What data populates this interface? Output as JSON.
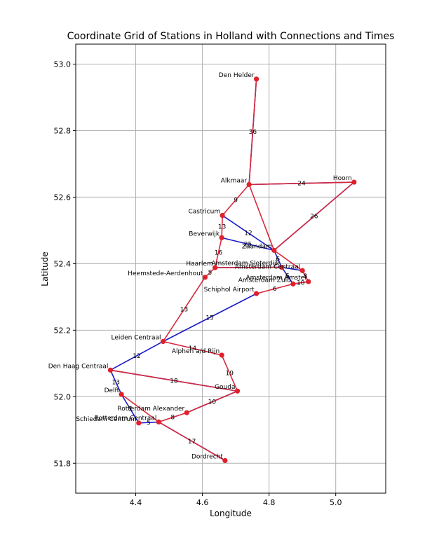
{
  "chart_data": {
    "type": "scatter",
    "title": "Coordinate Grid of Stations in Holland with Connections and Times",
    "xlabel": "Longitude",
    "ylabel": "Latitude",
    "xlim": [
      4.22,
      5.15
    ],
    "ylim": [
      51.71,
      53.06
    ],
    "xticks": [
      "4.4",
      "4.6",
      "4.8",
      "5.0"
    ],
    "yticks": [
      "51.8",
      "52.0",
      "52.2",
      "52.4",
      "52.6",
      "52.8",
      "53.0"
    ],
    "grid": true,
    "colors": {
      "marker": "#e0202a",
      "edge_blue": "#1a1ac8",
      "edge_red": "#d8283c",
      "grid": "#b0b0b0"
    },
    "stations": [
      {
        "name": "Den Helder",
        "x": 4.762,
        "y": 52.955
      },
      {
        "name": "Alkmaar",
        "x": 4.74,
        "y": 52.638
      },
      {
        "name": "Hoorn",
        "x": 5.055,
        "y": 52.645
      },
      {
        "name": "Castricum",
        "x": 4.66,
        "y": 52.545
      },
      {
        "name": "Beverwijk",
        "x": 4.658,
        "y": 52.478
      },
      {
        "name": "Zaandam",
        "x": 4.815,
        "y": 52.44
      },
      {
        "name": "Haarlem",
        "x": 4.638,
        "y": 52.388
      },
      {
        "name": "Amsterdam Sloterdijk",
        "x": 4.838,
        "y": 52.389
      },
      {
        "name": "Amsterdam Centraal",
        "x": 4.9,
        "y": 52.379
      },
      {
        "name": "Heemstede-Aerdenhout",
        "x": 4.608,
        "y": 52.359
      },
      {
        "name": "Amsterdam Amstel",
        "x": 4.918,
        "y": 52.346
      },
      {
        "name": "Amsterdam Zuid",
        "x": 4.872,
        "y": 52.339
      },
      {
        "name": "Schiphol Airport",
        "x": 4.762,
        "y": 52.31
      },
      {
        "name": "Leiden Centraal",
        "x": 4.482,
        "y": 52.166
      },
      {
        "name": "Alphen a/d Rijn",
        "x": 4.658,
        "y": 52.125
      },
      {
        "name": "Den Haag Centraal",
        "x": 4.324,
        "y": 52.08
      },
      {
        "name": "Gouda",
        "x": 4.705,
        "y": 52.017
      },
      {
        "name": "Delft",
        "x": 4.357,
        "y": 52.007
      },
      {
        "name": "Rotterdam Alexander",
        "x": 4.553,
        "y": 51.952
      },
      {
        "name": "Rotterdam Centraal",
        "x": 4.469,
        "y": 51.924
      },
      {
        "name": "Schiedam Centrum",
        "x": 4.409,
        "y": 51.921
      },
      {
        "name": "Dordrecht",
        "x": 4.668,
        "y": 51.808
      }
    ],
    "connections": [
      {
        "from": "Den Helder",
        "to": "Alkmaar",
        "time": "36",
        "color": "blue"
      },
      {
        "from": "Den Helder",
        "to": "Alkmaar",
        "time": "36",
        "color": "red"
      },
      {
        "from": "Alkmaar",
        "to": "Hoorn",
        "time": "24",
        "color": "blue"
      },
      {
        "from": "Alkmaar",
        "to": "Hoorn",
        "time": "24",
        "color": "red"
      },
      {
        "from": "Alkmaar",
        "to": "Castricum",
        "time": "9",
        "color": "red"
      },
      {
        "from": "Alkmaar",
        "to": "Zaandam",
        "time": "",
        "color": "red"
      },
      {
        "from": "Hoorn",
        "to": "Zaandam",
        "time": "26",
        "color": "blue"
      },
      {
        "from": "Hoorn",
        "to": "Zaandam",
        "time": "26",
        "color": "red"
      },
      {
        "from": "Castricum",
        "to": "Beverwijk",
        "time": "13",
        "color": "red"
      },
      {
        "from": "Castricum",
        "to": "Zaandam",
        "time": "12",
        "color": "blue"
      },
      {
        "from": "Beverwijk",
        "to": "Zaandam",
        "time": "25",
        "color": "blue"
      },
      {
        "from": "Beverwijk",
        "to": "Haarlem",
        "time": "16",
        "color": "red"
      },
      {
        "from": "Zaandam",
        "to": "Amsterdam Sloterdijk",
        "time": "6",
        "color": "blue"
      },
      {
        "from": "Zaandam",
        "to": "Amsterdam Centraal",
        "time": "",
        "color": "red"
      },
      {
        "from": "Haarlem",
        "to": "Amsterdam Sloterdijk",
        "time": "",
        "color": "blue"
      },
      {
        "from": "Haarlem",
        "to": "Amsterdam Sloterdijk",
        "time": "",
        "color": "red"
      },
      {
        "from": "Haarlem",
        "to": "Heemstede-Aerdenhout",
        "time": "5",
        "color": "red"
      },
      {
        "from": "Amsterdam Sloterdijk",
        "to": "Amsterdam Centraal",
        "time": "",
        "color": "blue"
      },
      {
        "from": "Amsterdam Sloterdijk",
        "to": "Amsterdam Zuid",
        "time": "6",
        "color": "blue"
      },
      {
        "from": "Amsterdam Centraal",
        "to": "Amsterdam Amstel",
        "time": "8",
        "color": "blue"
      },
      {
        "from": "Amsterdam Centraal",
        "to": "Amsterdam Amstel",
        "time": "8",
        "color": "red"
      },
      {
        "from": "Amsterdam Amstel",
        "to": "Amsterdam Zuid",
        "time": "10",
        "color": "blue"
      },
      {
        "from": "Amsterdam Amstel",
        "to": "Amsterdam Zuid",
        "time": "10",
        "color": "red"
      },
      {
        "from": "Amsterdam Zuid",
        "to": "Schiphol Airport",
        "time": "6",
        "color": "red"
      },
      {
        "from": "Heemstede-Aerdenhout",
        "to": "Leiden Centraal",
        "time": "13",
        "color": "red"
      },
      {
        "from": "Schiphol Airport",
        "to": "Leiden Centraal",
        "time": "15",
        "color": "blue"
      },
      {
        "from": "Leiden Centraal",
        "to": "Alphen a/d Rijn",
        "time": "14",
        "color": "red"
      },
      {
        "from": "Leiden Centraal",
        "to": "Den Haag Centraal",
        "time": "12",
        "color": "blue"
      },
      {
        "from": "Alphen a/d Rijn",
        "to": "Gouda",
        "time": "19",
        "color": "red"
      },
      {
        "from": "Den Haag Centraal",
        "to": "Gouda",
        "time": "18",
        "color": "blue"
      },
      {
        "from": "Den Haag Centraal",
        "to": "Gouda",
        "time": "18",
        "color": "red"
      },
      {
        "from": "Den Haag Centraal",
        "to": "Delft",
        "time": "13",
        "color": "blue"
      },
      {
        "from": "Gouda",
        "to": "Rotterdam Alexander",
        "time": "10",
        "color": "blue"
      },
      {
        "from": "Gouda",
        "to": "Rotterdam Alexander",
        "time": "10",
        "color": "red"
      },
      {
        "from": "Delft",
        "to": "Schiedam Centrum",
        "time": "7",
        "color": "blue"
      },
      {
        "from": "Delft",
        "to": "Rotterdam Centraal",
        "time": "",
        "color": "red"
      },
      {
        "from": "Rotterdam Alexander",
        "to": "Rotterdam Centraal",
        "time": "8",
        "color": "red"
      },
      {
        "from": "Schiedam Centrum",
        "to": "Rotterdam Centraal",
        "time": "5",
        "color": "blue"
      },
      {
        "from": "Rotterdam Centraal",
        "to": "Dordrecht",
        "time": "17",
        "color": "blue"
      },
      {
        "from": "Rotterdam Centraal",
        "to": "Dordrecht",
        "time": "17",
        "color": "red"
      }
    ]
  }
}
